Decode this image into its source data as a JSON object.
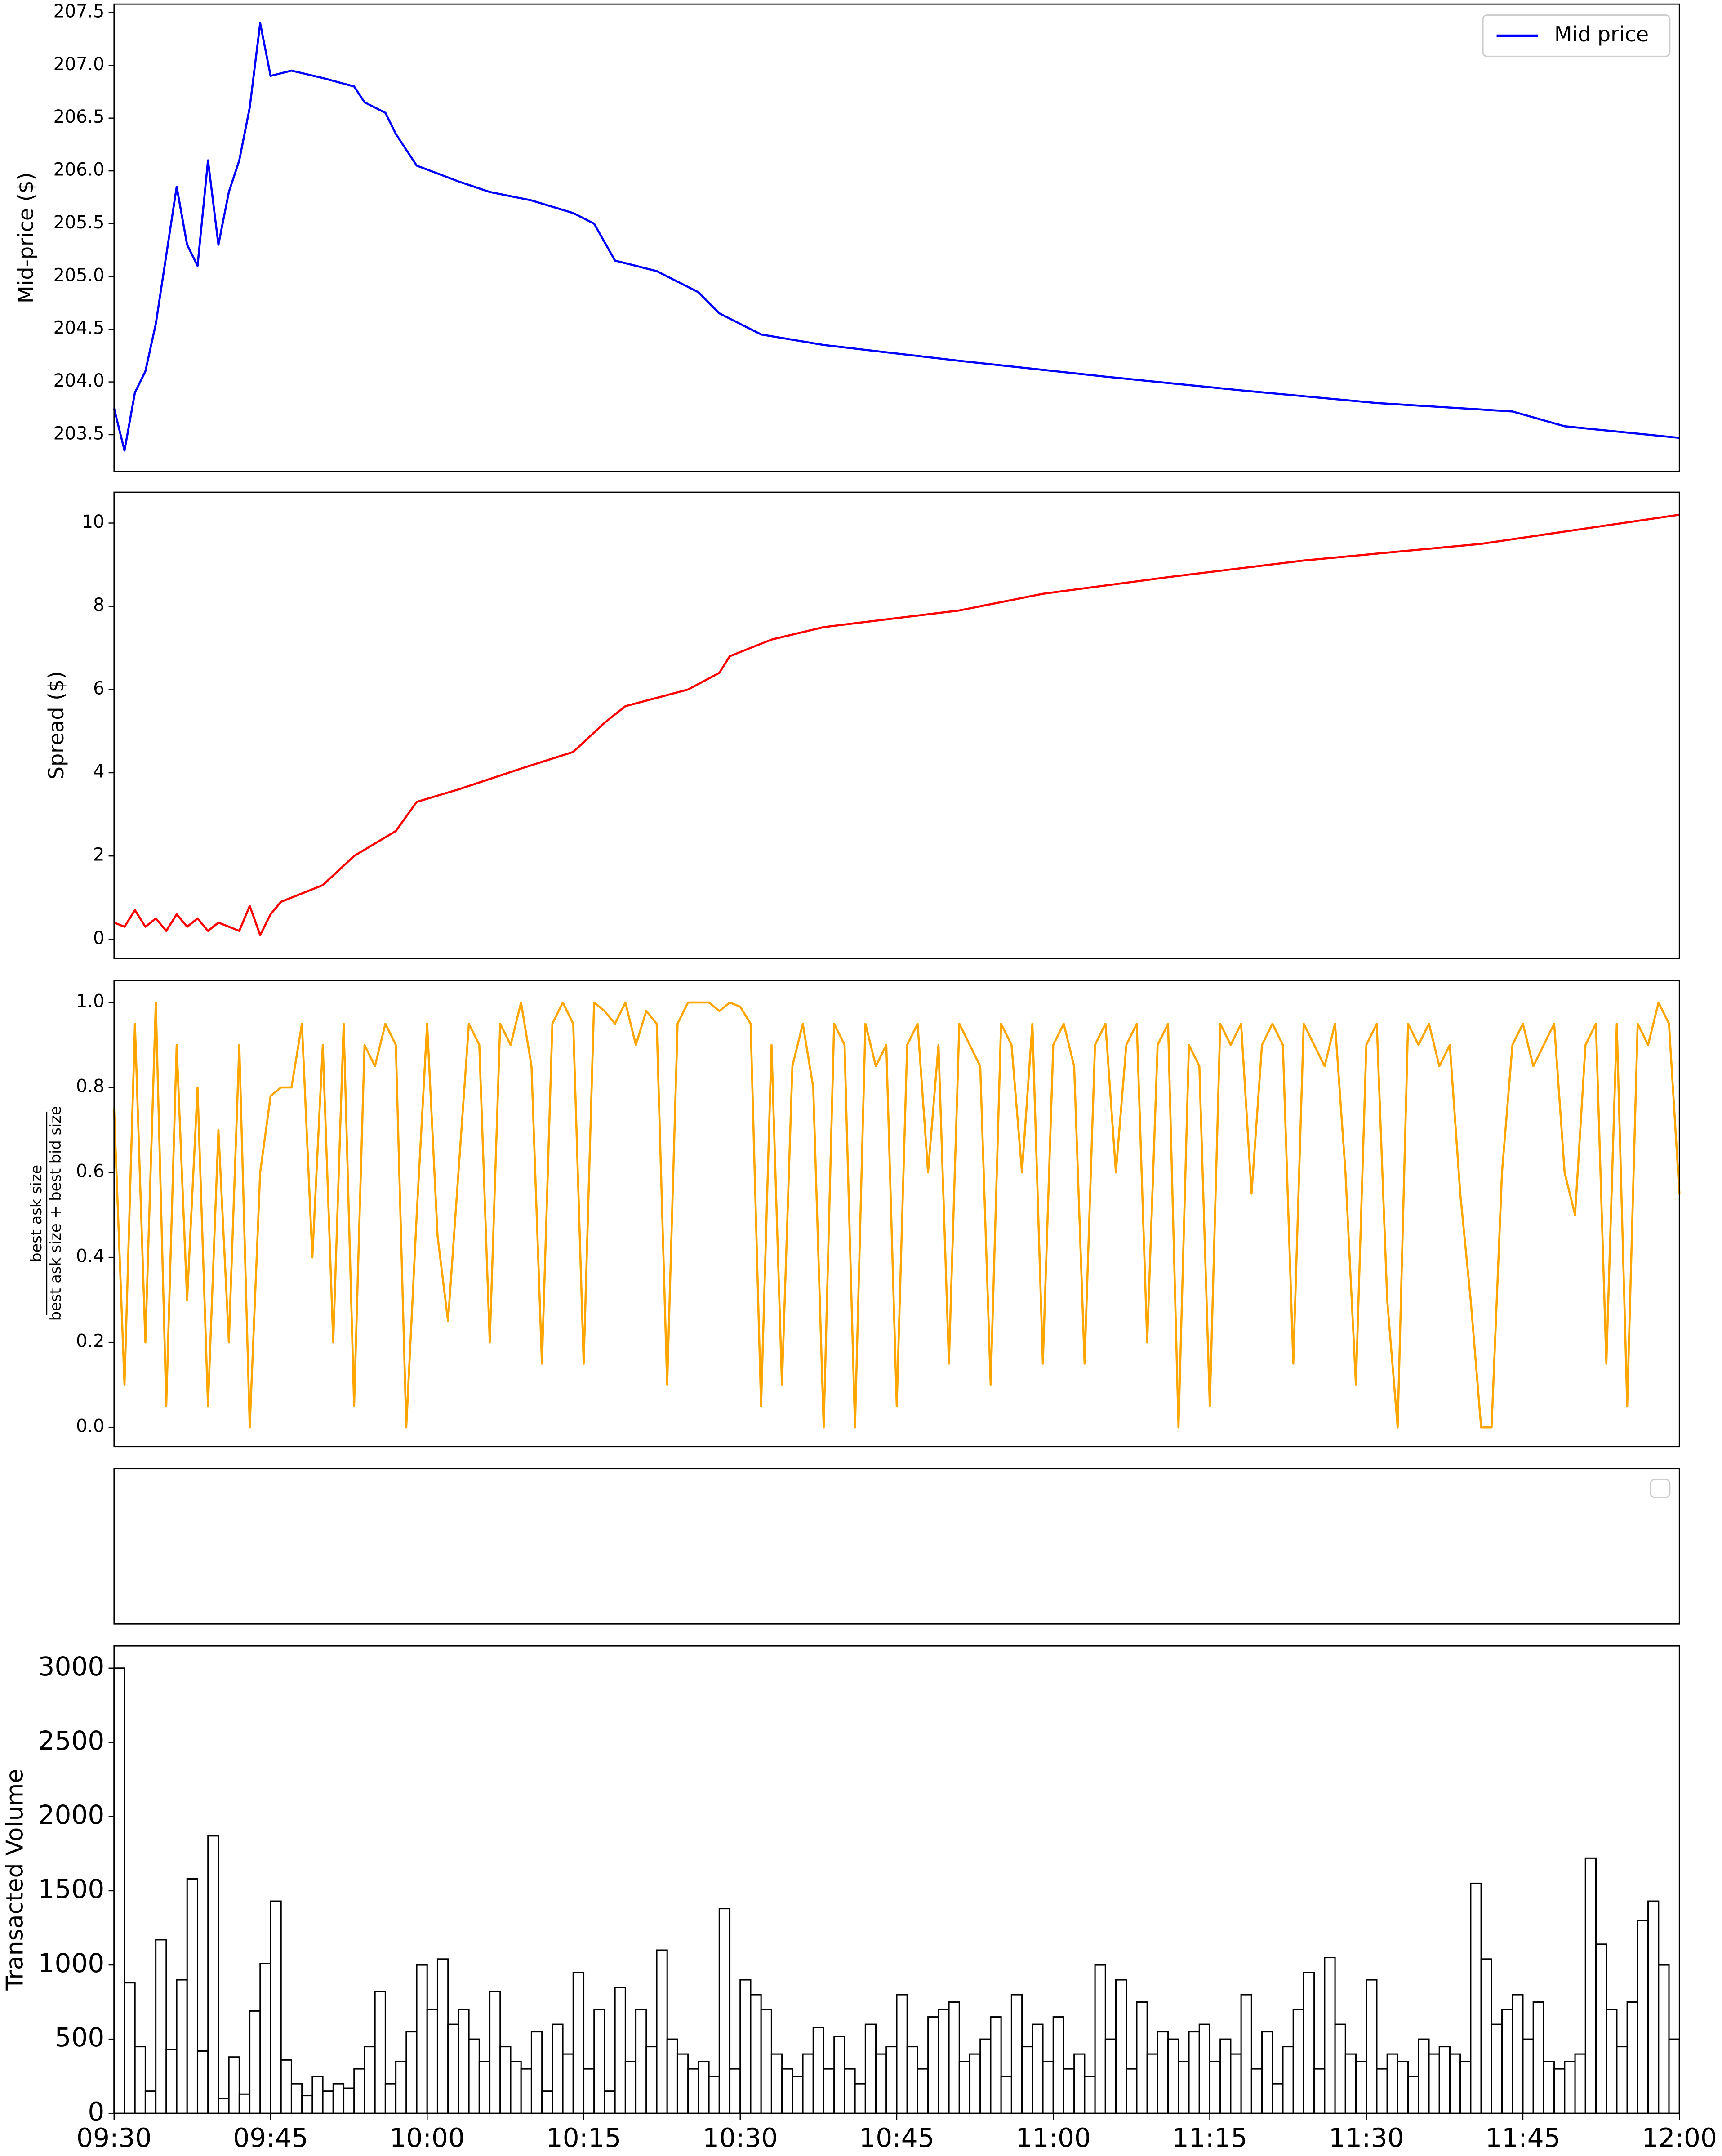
{
  "chart_data": [
    {
      "type": "line",
      "ylabel": "Mid-price ($)",
      "legend": "upper right",
      "xlim": [
        "09:30",
        "12:00"
      ],
      "ylim": [
        203.15,
        207.58
      ],
      "yticks": [
        203.5,
        {
          "value": 204,
          "label": "204.0"
        },
        204.5,
        {
          "value": 205,
          "label": "205.0"
        },
        205.5,
        {
          "value": 206,
          "label": "206.0"
        },
        206.5,
        {
          "value": 207,
          "label": "207.0"
        },
        207.5
      ],
      "x": [
        "09:30",
        "09:31",
        "09:32",
        "09:33",
        "09:34",
        "09:35",
        "09:36",
        "09:37",
        "09:38",
        "09:39",
        "09:40",
        "09:41",
        "09:42",
        "09:43",
        "09:44",
        "09:45",
        "09:47",
        "09:50",
        "09:53",
        "09:54",
        "09:56",
        "09:57",
        "09:59",
        "10:03",
        "10:06",
        "10:10",
        "10:14",
        "10:16",
        "10:18",
        "10:22",
        "10:26",
        "10:28",
        "10:32",
        "10:38",
        "10:51",
        "11:05",
        "11:18",
        "11:31",
        "11:44",
        "11:49",
        "12:00"
      ],
      "series": [
        {
          "name": "Mid price",
          "color": "#0000ff",
          "values": [
            203.75,
            203.35,
            203.9,
            204.1,
            204.55,
            205.2,
            205.85,
            205.3,
            205.1,
            206.1,
            205.3,
            205.8,
            206.1,
            206.6,
            207.4,
            206.9,
            206.95,
            206.88,
            206.8,
            206.65,
            206.55,
            206.35,
            206.05,
            205.9,
            205.8,
            205.72,
            205.6,
            205.5,
            205.15,
            205.05,
            204.85,
            204.65,
            204.45,
            204.35,
            204.2,
            204.05,
            203.92,
            203.8,
            203.72,
            203.58,
            203.47
          ]
        }
      ]
    },
    {
      "type": "line",
      "ylabel": "Spread ($)",
      "xlim": [
        "09:30",
        "12:00"
      ],
      "ylim": [
        -0.46,
        10.74
      ],
      "yticks": [
        0,
        2,
        4,
        6,
        8,
        10
      ],
      "x": [
        "09:30",
        "09:31",
        "09:32",
        "09:33",
        "09:34",
        "09:35",
        "09:36",
        "09:37",
        "09:38",
        "09:39",
        "09:40",
        "09:41",
        "09:42",
        "09:43",
        "09:44",
        "09:45",
        "09:46",
        "09:48",
        "09:50",
        "09:53",
        "09:57",
        "09:59",
        "10:03",
        "10:09",
        "10:14",
        "10:17",
        "10:19",
        "10:25",
        "10:28",
        "10:29",
        "10:33",
        "10:38",
        "10:51",
        "10:59",
        "11:11",
        "11:24",
        "11:41",
        "12:00"
      ],
      "series": [
        {
          "color": "#ff0000",
          "values": [
            0.4,
            0.3,
            0.7,
            0.3,
            0.5,
            0.2,
            0.6,
            0.3,
            0.5,
            0.2,
            0.4,
            0.3,
            0.2,
            0.8,
            0.1,
            0.6,
            0.9,
            1.1,
            1.3,
            2.0,
            2.6,
            3.3,
            3.6,
            4.1,
            4.5,
            5.2,
            5.6,
            6.0,
            6.4,
            6.8,
            7.2,
            7.5,
            7.9,
            8.3,
            8.7,
            9.1,
            9.5,
            10.2
          ]
        }
      ]
    },
    {
      "type": "line",
      "ylabel": {
        "numerator": "best ask size",
        "denominator": "best ask size + best bid size"
      },
      "xlim": [
        "09:30",
        "12:00"
      ],
      "ylim": [
        -0.045,
        1.052
      ],
      "yticks": [
        {
          "value": 0,
          "label": "0.0"
        },
        0.2,
        0.4,
        0.6,
        0.8,
        {
          "value": 1,
          "label": "1.0"
        }
      ],
      "x": [
        "09:30",
        "09:31",
        "09:32",
        "09:33",
        "09:34",
        "09:35",
        "09:36",
        "09:37",
        "09:38",
        "09:39",
        "09:40",
        "09:41",
        "09:42",
        "09:43",
        "09:44",
        "09:45",
        "09:46",
        "09:47",
        "09:48",
        "09:49",
        "09:50",
        "09:51",
        "09:52",
        "09:53",
        "09:54",
        "09:55",
        "09:56",
        "09:57",
        "09:58",
        "09:59",
        "10:00",
        "10:01",
        "10:02",
        "10:03",
        "10:04",
        "10:05",
        "10:06",
        "10:07",
        "10:08",
        "10:09",
        "10:10",
        "10:11",
        "10:12",
        "10:13",
        "10:14",
        "10:15",
        "10:16",
        "10:17",
        "10:18",
        "10:19",
        "10:20",
        "10:21",
        "10:22",
        "10:23",
        "10:24",
        "10:25",
        "10:26",
        "10:27",
        "10:28",
        "10:29",
        "10:30",
        "10:31",
        "10:32",
        "10:33",
        "10:34",
        "10:35",
        "10:36",
        "10:37",
        "10:38",
        "10:39",
        "10:40",
        "10:41",
        "10:42",
        "10:43",
        "10:44",
        "10:45",
        "10:46",
        "10:47",
        "10:48",
        "10:49",
        "10:50",
        "10:51",
        "10:52",
        "10:53",
        "10:54",
        "10:55",
        "10:56",
        "10:57",
        "10:58",
        "10:59",
        "11:00",
        "11:01",
        "11:02",
        "11:03",
        "11:04",
        "11:05",
        "11:06",
        "11:07",
        "11:08",
        "11:09",
        "11:10",
        "11:11",
        "11:12",
        "11:13",
        "11:14",
        "11:15",
        "11:16",
        "11:17",
        "11:18",
        "11:19",
        "11:20",
        "11:21",
        "11:22",
        "11:23",
        "11:24",
        "11:25",
        "11:26",
        "11:27",
        "11:28",
        "11:29",
        "11:30",
        "11:31",
        "11:32",
        "11:33",
        "11:34",
        "11:35",
        "11:36",
        "11:37",
        "11:38",
        "11:39",
        "11:40",
        "11:41",
        "11:42",
        "11:43",
        "11:44",
        "11:45",
        "11:46",
        "11:47",
        "11:48",
        "11:49",
        "11:50",
        "11:51",
        "11:52",
        "11:53",
        "11:54",
        "11:55",
        "11:56",
        "11:57",
        "11:58",
        "11:59",
        "12:00"
      ],
      "series": [
        {
          "color": "#ffa500",
          "values": [
            0.75,
            0.1,
            0.95,
            0.2,
            1.0,
            0.05,
            0.9,
            0.3,
            0.8,
            0.05,
            0.7,
            0.2,
            0.9,
            0.0,
            0.6,
            0.78,
            0.8,
            0.8,
            0.95,
            0.4,
            0.9,
            0.2,
            0.95,
            0.05,
            0.9,
            0.85,
            0.95,
            0.9,
            0.0,
            0.5,
            0.95,
            0.45,
            0.25,
            0.6,
            0.95,
            0.9,
            0.2,
            0.95,
            0.9,
            1.0,
            0.85,
            0.15,
            0.95,
            1.0,
            0.95,
            0.15,
            1.0,
            0.98,
            0.95,
            1.0,
            0.9,
            0.98,
            0.95,
            0.1,
            0.95,
            1.0,
            1.0,
            1.0,
            0.98,
            1.0,
            0.99,
            0.95,
            0.05,
            0.9,
            0.1,
            0.85,
            0.95,
            0.8,
            0.0,
            0.95,
            0.9,
            0.0,
            0.95,
            0.85,
            0.9,
            0.05,
            0.9,
            0.95,
            0.6,
            0.9,
            0.15,
            0.95,
            0.9,
            0.85,
            0.1,
            0.95,
            0.9,
            0.6,
            0.95,
            0.15,
            0.9,
            0.95,
            0.85,
            0.15,
            0.9,
            0.95,
            0.6,
            0.9,
            0.95,
            0.2,
            0.9,
            0.95,
            0.0,
            0.9,
            0.85,
            0.05,
            0.95,
            0.9,
            0.95,
            0.55,
            0.9,
            0.95,
            0.9,
            0.15,
            0.95,
            0.9,
            0.85,
            0.95,
            0.6,
            0.1,
            0.9,
            0.95,
            0.3,
            0.0,
            0.95,
            0.9,
            0.95,
            0.85,
            0.9,
            0.55,
            0.3,
            0.0,
            0.0,
            0.6,
            0.9,
            0.95,
            0.85,
            0.9,
            0.95,
            0.6,
            0.5,
            0.9,
            0.95,
            0.15,
            0.95,
            0.05,
            0.95,
            0.9,
            1.0,
            0.95,
            0.55
          ]
        }
      ]
    },
    {
      "type": "line",
      "legend": "upper right"
    },
    {
      "type": "histogram",
      "ylabel": "Transacted Volume",
      "color": "#ffffff",
      "edgecolor": "#000000",
      "xlim": [
        "09:30",
        "12:00"
      ],
      "xticks": [
        "09:30",
        "09:45",
        "10:00",
        "10:15",
        "10:30",
        "10:45",
        "11:00",
        "11:15",
        "11:30",
        "11:45",
        "12:00"
      ],
      "ylim": [
        0,
        3150
      ],
      "yticks": [
        0,
        500,
        1000,
        1500,
        2000,
        2500,
        3000
      ],
      "bins": [
        "09:30",
        "09:31",
        "09:32",
        "09:33",
        "09:34",
        "09:35",
        "09:36",
        "09:37",
        "09:38",
        "09:39",
        "09:40",
        "09:41",
        "09:42",
        "09:43",
        "09:44",
        "09:45",
        "09:46",
        "09:47",
        "09:48",
        "09:49",
        "09:50",
        "09:51",
        "09:52",
        "09:53",
        "09:54",
        "09:55",
        "09:56",
        "09:57",
        "09:58",
        "09:59",
        "10:00",
        "10:01",
        "10:02",
        "10:03",
        "10:04",
        "10:05",
        "10:06",
        "10:07",
        "10:08",
        "10:09",
        "10:10",
        "10:11",
        "10:12",
        "10:13",
        "10:14",
        "10:15",
        "10:16",
        "10:17",
        "10:18",
        "10:19",
        "10:20",
        "10:21",
        "10:22",
        "10:23",
        "10:24",
        "10:25",
        "10:26",
        "10:27",
        "10:28",
        "10:29",
        "10:30",
        "10:31",
        "10:32",
        "10:33",
        "10:34",
        "10:35",
        "10:36",
        "10:37",
        "10:38",
        "10:39",
        "10:40",
        "10:41",
        "10:42",
        "10:43",
        "10:44",
        "10:45",
        "10:46",
        "10:47",
        "10:48",
        "10:49",
        "10:50",
        "10:51",
        "10:52",
        "10:53",
        "10:54",
        "10:55",
        "10:56",
        "10:57",
        "10:58",
        "10:59",
        "11:00",
        "11:01",
        "11:02",
        "11:03",
        "11:04",
        "11:05",
        "11:06",
        "11:07",
        "11:08",
        "11:09",
        "11:10",
        "11:11",
        "11:12",
        "11:13",
        "11:14",
        "11:15",
        "11:16",
        "11:17",
        "11:18",
        "11:19",
        "11:20",
        "11:21",
        "11:22",
        "11:23",
        "11:24",
        "11:25",
        "11:26",
        "11:27",
        "11:28",
        "11:29",
        "11:30",
        "11:31",
        "11:32",
        "11:33",
        "11:34",
        "11:35",
        "11:36",
        "11:37",
        "11:38",
        "11:39",
        "11:40",
        "11:41",
        "11:42",
        "11:43",
        "11:44",
        "11:45",
        "11:46",
        "11:47",
        "11:48",
        "11:49",
        "11:50",
        "11:51",
        "11:52",
        "11:53",
        "11:54",
        "11:55",
        "11:56",
        "11:57",
        "11:58",
        "11:59",
        "12:00"
      ],
      "values": [
        3000,
        880,
        450,
        150,
        1170,
        430,
        900,
        1580,
        420,
        1870,
        100,
        380,
        130,
        690,
        1010,
        1430,
        360,
        200,
        120,
        250,
        150,
        200,
        170,
        300,
        450,
        820,
        200,
        350,
        550,
        1000,
        700,
        1040,
        600,
        700,
        500,
        350,
        820,
        450,
        350,
        300,
        550,
        150,
        600,
        400,
        950,
        300,
        700,
        150,
        850,
        350,
        700,
        450,
        1100,
        500,
        400,
        300,
        350,
        250,
        1380,
        300,
        900,
        800,
        700,
        400,
        300,
        250,
        400,
        580,
        300,
        520,
        300,
        200,
        600,
        400,
        450,
        800,
        450,
        300,
        650,
        700,
        750,
        350,
        400,
        500,
        650,
        250,
        800,
        450,
        600,
        350,
        650,
        300,
        400,
        250,
        1000,
        500,
        900,
        300,
        750,
        400,
        550,
        500,
        350,
        550,
        600,
        350,
        500,
        400,
        800,
        300,
        550,
        200,
        450,
        700,
        950,
        300,
        1050,
        600,
        400,
        350,
        900,
        300,
        400,
        350,
        250,
        500,
        400,
        450,
        400,
        350,
        1550,
        1040,
        600,
        700,
        800,
        500,
        750,
        350,
        300,
        350,
        400,
        1720,
        1140,
        700,
        450,
        750,
        1300,
        1430,
        1000,
        500
      ]
    }
  ]
}
